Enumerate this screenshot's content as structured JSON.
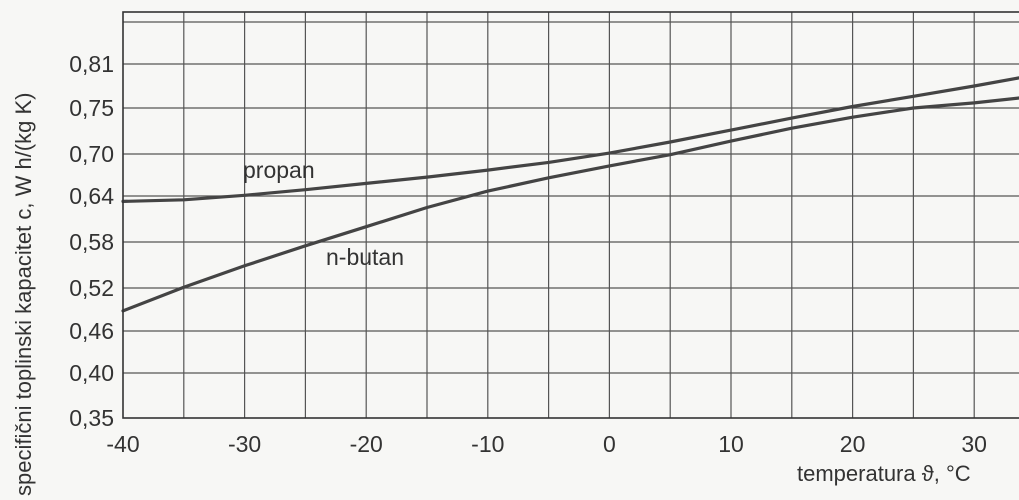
{
  "chart_data": {
    "type": "line",
    "ylabel": "specifični toplinski kapacitet c, W h/(kg K)",
    "xlabel": "temperatura ϑ, °C",
    "x_ticks": [
      "-40",
      "-30",
      "-20",
      "-10",
      "0",
      "10",
      "20",
      "30"
    ],
    "y_ticks": [
      "0,35",
      "0,40",
      "0,46",
      "0,52",
      "0,58",
      "0,64",
      "0,70",
      "0,75",
      "0,81"
    ],
    "xlim": [
      -40,
      35
    ],
    "grid": true,
    "series": [
      {
        "name": "propan",
        "x": [
          -40,
          -35,
          -30,
          -25,
          -20,
          -15,
          -10,
          -5,
          0,
          5,
          10,
          15,
          20,
          25,
          30,
          35
        ],
        "y": [
          0.633,
          0.635,
          0.641,
          0.649,
          0.658,
          0.667,
          0.677,
          0.688,
          0.701,
          0.713,
          0.726,
          0.739,
          0.752,
          0.766,
          0.78,
          0.795
        ]
      },
      {
        "name": "n-butan",
        "x": [
          -40,
          -35,
          -30,
          -25,
          -20,
          -15,
          -10,
          -5,
          0,
          5,
          10,
          15,
          20,
          25,
          30,
          35
        ],
        "y": [
          0.488,
          0.521,
          0.549,
          0.575,
          0.6,
          0.625,
          0.647,
          0.666,
          0.683,
          0.699,
          0.714,
          0.728,
          0.74,
          0.75,
          0.757,
          0.766
        ]
      }
    ]
  }
}
